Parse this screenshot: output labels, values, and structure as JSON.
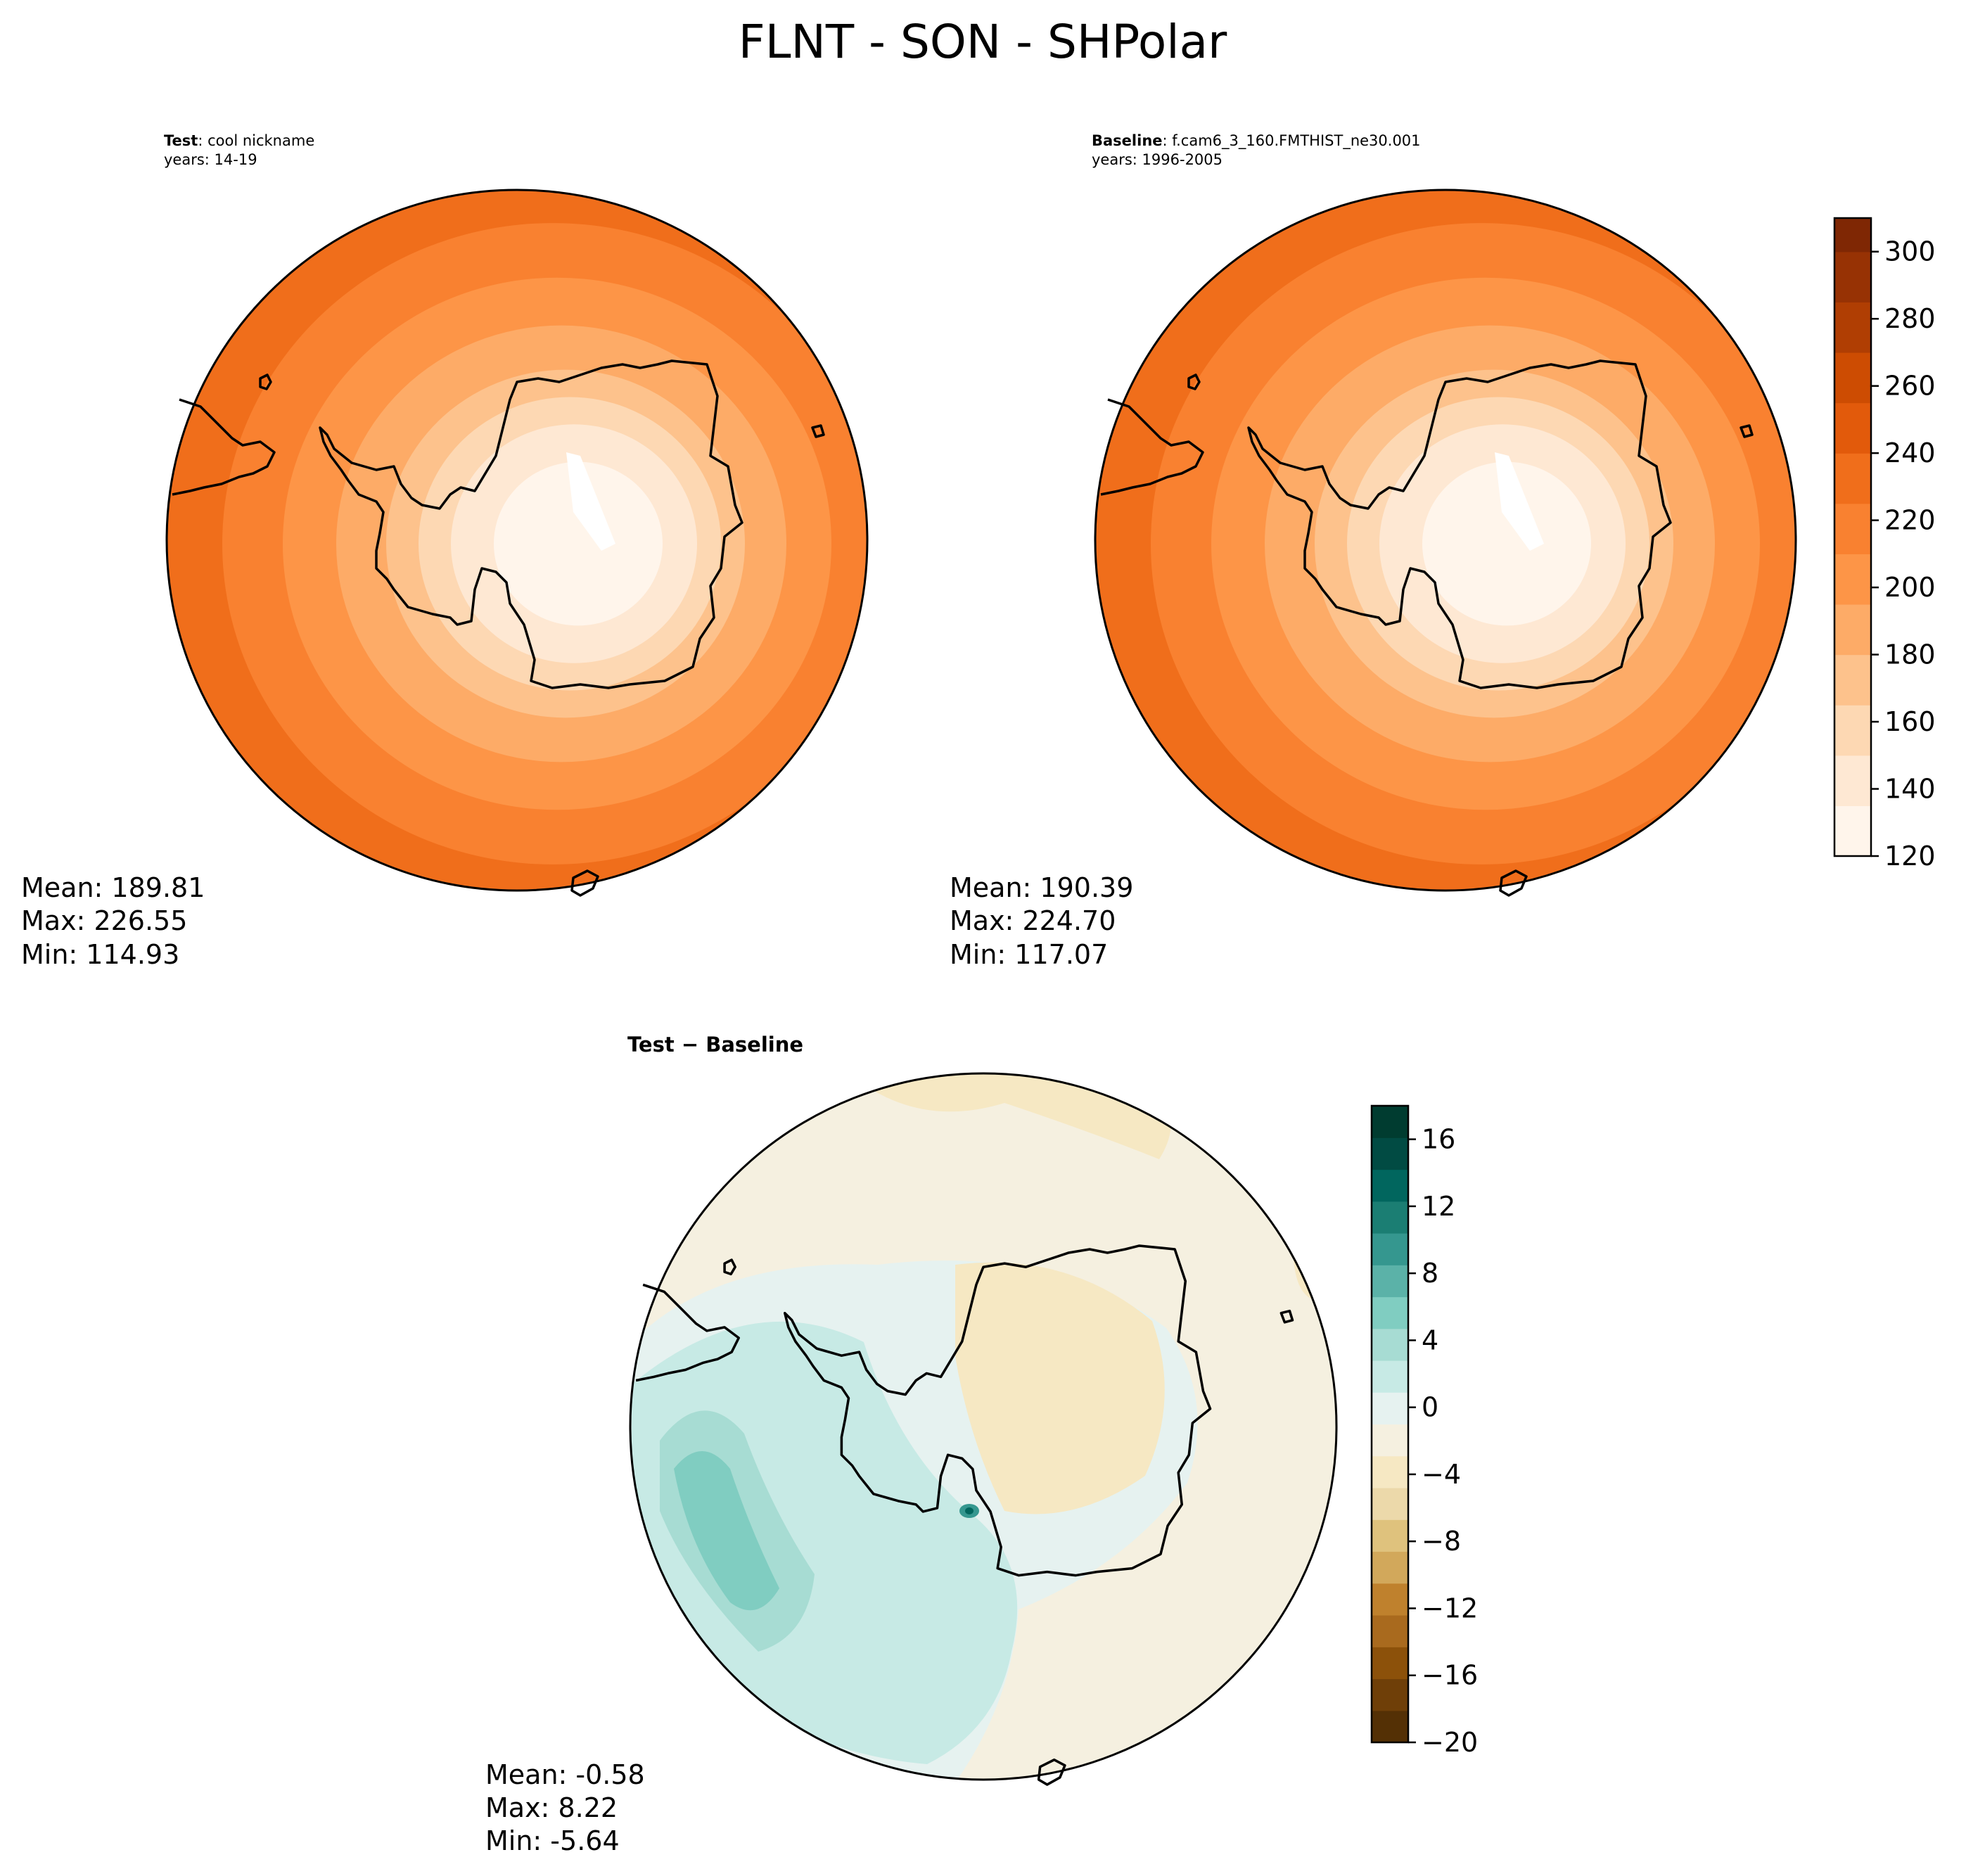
{
  "figure_title": "FLNT - SON - SHPolar",
  "colors": {
    "abs_colormap": [
      "#fff5eb",
      "#fee8d3",
      "#fdd8b3",
      "#fdc28c",
      "#fdab67",
      "#fd9547",
      "#f98130",
      "#f06e1b",
      "#e25a0b",
      "#cd4c02",
      "#b03e03",
      "#973204",
      "#7f2704"
    ],
    "diff_colormap": [
      "#543005",
      "#6f3f08",
      "#8c510a",
      "#a96a1e",
      "#bf812d",
      "#d2a85b",
      "#dfc27d",
      "#ecd9aa",
      "#f6e8c3",
      "#f5f0e0",
      "#e6f2f0",
      "#c7eae5",
      "#a7dcd3",
      "#80cdc1",
      "#5bb2a8",
      "#35978f",
      "#1b7e73",
      "#01665e",
      "#014b43",
      "#003c30"
    ],
    "coastline": "#000000"
  },
  "chart_data": [
    {
      "type": "heatmap",
      "panel": "test",
      "projection": "south-polar-stereographic",
      "title_bold": "Test",
      "title_rest": ": cool nickname",
      "subtitle": "years: 14-19",
      "stats": {
        "mean_label": "Mean: 189.81",
        "max_label": "Max: 226.55",
        "min_label": "Min: 114.93"
      },
      "field_range": [
        114.93,
        226.55
      ]
    },
    {
      "type": "heatmap",
      "panel": "baseline",
      "projection": "south-polar-stereographic",
      "title_bold": "Baseline",
      "title_rest": ": f.cam6_3_160.FMTHIST_ne30.001",
      "subtitle": "years: 1996-2005",
      "stats": {
        "mean_label": "Mean: 190.39",
        "max_label": "Max: 224.70",
        "min_label": "Min: 117.07"
      },
      "field_range": [
        117.07,
        224.7
      ],
      "colorbar": {
        "range": [
          120,
          310
        ],
        "levels": [
          120,
          135,
          150,
          165,
          180,
          195,
          210,
          225,
          240,
          255,
          270,
          285,
          300,
          310
        ],
        "ticks": [
          "120",
          "140",
          "160",
          "180",
          "200",
          "220",
          "240",
          "260",
          "280",
          "300"
        ]
      }
    },
    {
      "type": "heatmap",
      "panel": "difference",
      "projection": "south-polar-stereographic",
      "title_bold": "Test − Baseline",
      "stats": {
        "mean_label": "Mean: -0.58",
        "max_label": "Max:  8.22",
        "min_label": "Min: -5.64"
      },
      "field_range": [
        -5.64,
        8.22
      ],
      "colorbar": {
        "range": [
          -20,
          18
        ],
        "ticks": [
          "−20",
          "−16",
          "−12",
          "−8",
          "−4",
          "0",
          "4",
          "8",
          "12",
          "16"
        ]
      }
    }
  ]
}
